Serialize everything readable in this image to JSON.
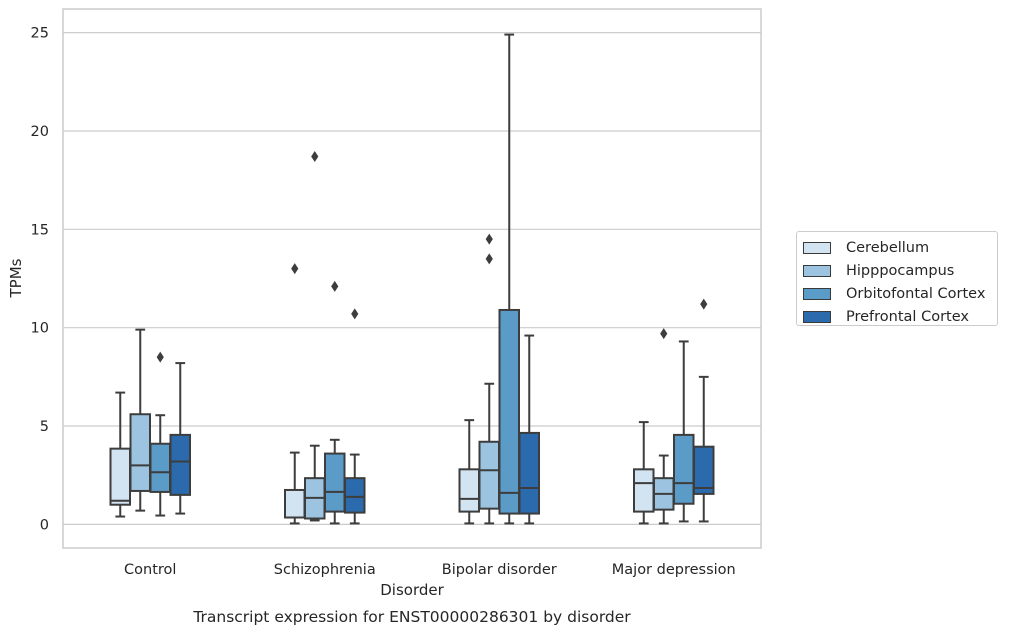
{
  "chart_data": {
    "type": "box",
    "xlabel": "Disorder",
    "ylabel": "TPMs",
    "caption": "Transcript expression for ENST00000286301 by disorder",
    "ylim": [
      -1.2,
      26.2
    ],
    "yticks": [
      "0",
      "5",
      "10",
      "15",
      "20",
      "25"
    ],
    "grid": "horizontal",
    "legend_position": "right",
    "categories": [
      "Control",
      "Schizophrenia",
      "Bipolar disorder",
      "Major depression"
    ],
    "series": [
      {
        "name": "Cerebellum",
        "color": "#d2e3f1",
        "boxes": [
          {
            "whisker_low": 0.4,
            "q1": 1.0,
            "median": 1.2,
            "q3": 3.85,
            "whisker_high": 6.7,
            "outliers": []
          },
          {
            "whisker_low": 0.05,
            "q1": 0.35,
            "median": 0.35,
            "q3": 1.75,
            "whisker_high": 3.65,
            "outliers": [
              13.0
            ]
          },
          {
            "whisker_low": 0.05,
            "q1": 0.65,
            "median": 1.3,
            "q3": 2.8,
            "whisker_high": 5.3,
            "outliers": []
          },
          {
            "whisker_low": 0.05,
            "q1": 0.65,
            "median": 2.1,
            "q3": 2.8,
            "whisker_high": 5.2,
            "outliers": []
          }
        ]
      },
      {
        "name": "Hipppocampus",
        "color": "#9cc4e0",
        "boxes": [
          {
            "whisker_low": 0.7,
            "q1": 1.7,
            "median": 3.0,
            "q3": 5.6,
            "whisker_high": 9.9,
            "outliers": []
          },
          {
            "whisker_low": 0.2,
            "q1": 0.3,
            "median": 1.35,
            "q3": 2.35,
            "whisker_high": 4.0,
            "outliers": [
              18.7
            ]
          },
          {
            "whisker_low": 0.05,
            "q1": 0.8,
            "median": 2.75,
            "q3": 4.2,
            "whisker_high": 7.15,
            "outliers": [
              13.5,
              14.5
            ]
          },
          {
            "whisker_low": 0.05,
            "q1": 0.75,
            "median": 1.55,
            "q3": 2.35,
            "whisker_high": 3.5,
            "outliers": [
              9.7
            ]
          }
        ]
      },
      {
        "name": "Orbitofontal Cortex",
        "color": "#5b9bc8",
        "boxes": [
          {
            "whisker_low": 0.45,
            "q1": 1.65,
            "median": 2.65,
            "q3": 4.1,
            "whisker_high": 5.55,
            "outliers": [
              8.5
            ]
          },
          {
            "whisker_low": 0.05,
            "q1": 0.65,
            "median": 1.65,
            "q3": 3.6,
            "whisker_high": 4.3,
            "outliers": [
              12.1
            ]
          },
          {
            "whisker_low": 0.05,
            "q1": 0.55,
            "median": 1.6,
            "q3": 10.9,
            "whisker_high": 24.9,
            "outliers": []
          },
          {
            "whisker_low": 0.15,
            "q1": 1.05,
            "median": 2.1,
            "q3": 4.55,
            "whisker_high": 9.3,
            "outliers": []
          }
        ]
      },
      {
        "name": "Prefrontal Cortex",
        "color": "#2a6aad",
        "boxes": [
          {
            "whisker_low": 0.55,
            "q1": 1.5,
            "median": 3.2,
            "q3": 4.55,
            "whisker_high": 8.2,
            "outliers": []
          },
          {
            "whisker_low": 0.05,
            "q1": 0.6,
            "median": 1.4,
            "q3": 2.35,
            "whisker_high": 3.55,
            "outliers": [
              10.7
            ]
          },
          {
            "whisker_low": 0.05,
            "q1": 0.55,
            "median": 1.85,
            "q3": 4.65,
            "whisker_high": 9.6,
            "outliers": []
          },
          {
            "whisker_low": 0.15,
            "q1": 1.55,
            "median": 1.85,
            "q3": 3.95,
            "whisker_high": 7.5,
            "outliers": [
              11.2
            ]
          }
        ]
      }
    ]
  }
}
